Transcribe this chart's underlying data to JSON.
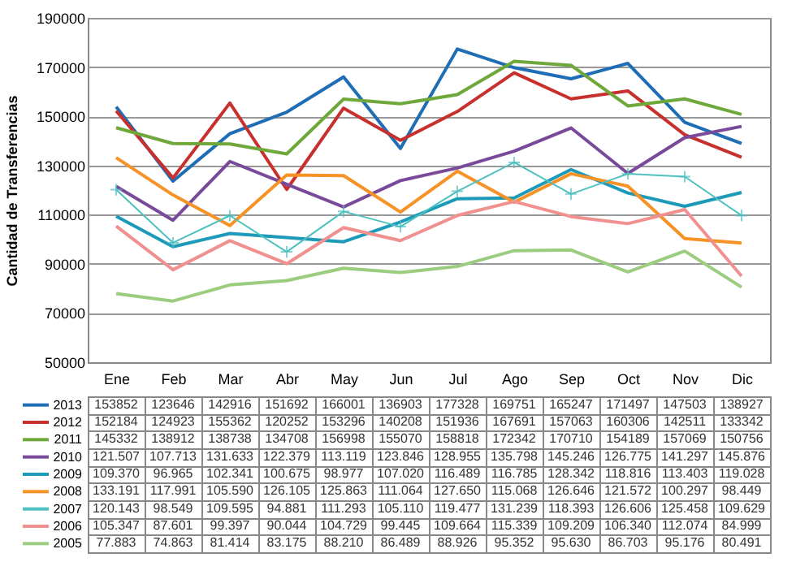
{
  "chart_data": {
    "type": "line",
    "ylabel": "Cantidad de Transferencias",
    "categories": [
      "Ene",
      "Feb",
      "Mar",
      "Abr",
      "May",
      "Jun",
      "Jul",
      "Ago",
      "Sep",
      "Oct",
      "Nov",
      "Dic"
    ],
    "ylim": [
      50000,
      190000
    ],
    "yticks": [
      50000,
      70000,
      90000,
      110000,
      130000,
      150000,
      170000,
      190000
    ],
    "grid": "y",
    "legend": "bottom",
    "marker": "none",
    "line_style": "solid",
    "series": [
      {
        "name": "2013",
        "color": "#1f6db5",
        "values": [
          153852,
          123646,
          142916,
          151692,
          166001,
          136903,
          177328,
          169751,
          165247,
          171497,
          147503,
          138927
        ],
        "value_labels": [
          "153852",
          "123646",
          "142916",
          "151692",
          "166001",
          "136903",
          "177328",
          "169751",
          "165247",
          "171497",
          "147503",
          "138927"
        ]
      },
      {
        "name": "2012",
        "color": "#c8302e",
        "values": [
          152184,
          124923,
          155362,
          120252,
          153296,
          140208,
          151936,
          167691,
          157063,
          160306,
          142511,
          133342
        ],
        "value_labels": [
          "152184",
          "124923",
          "155362",
          "120252",
          "153296",
          "140208",
          "151936",
          "167691",
          "157063",
          "160306",
          "142511",
          "133342"
        ]
      },
      {
        "name": "2011",
        "color": "#6fa83a",
        "values": [
          145332,
          138912,
          138738,
          134708,
          156998,
          155070,
          158818,
          172342,
          170710,
          154189,
          157069,
          150756
        ],
        "value_labels": [
          "145332",
          "138912",
          "138738",
          "134708",
          "156998",
          "155070",
          "158818",
          "172342",
          "170710",
          "154189",
          "157069",
          "150756"
        ]
      },
      {
        "name": "2010",
        "color": "#7a4a9a",
        "values": [
          121507,
          107713,
          131633,
          122379,
          113119,
          123846,
          128955,
          135798,
          145246,
          126775,
          141297,
          145876
        ],
        "value_labels": [
          "121.507",
          "107.713",
          "131.633",
          "122.379",
          "113.119",
          "123.846",
          "128.955",
          "135.798",
          "145.246",
          "126.775",
          "141.297",
          "145.876"
        ]
      },
      {
        "name": "2009",
        "color": "#1c9ab8",
        "values": [
          109370,
          96965,
          102341,
          100675,
          98977,
          107020,
          116489,
          116785,
          128342,
          118816,
          113403,
          119028
        ],
        "value_labels": [
          "109.370",
          "96.965",
          "102.341",
          "100.675",
          "98.977",
          "107.020",
          "116.489",
          "116.785",
          "128.342",
          "118.816",
          "113.403",
          "119.028"
        ]
      },
      {
        "name": "2008",
        "color": "#f79226",
        "values": [
          133191,
          117991,
          105590,
          126105,
          125863,
          111064,
          127650,
          115068,
          126646,
          121572,
          100297,
          98449
        ],
        "value_labels": [
          "133.191",
          "117.991",
          "105.590",
          "126.105",
          "125.863",
          "111.064",
          "127.650",
          "115.068",
          "126.646",
          "121.572",
          "100.297",
          "98.449"
        ]
      },
      {
        "name": "2007",
        "color": "#4dc0c0",
        "marker": "cross",
        "values": [
          120143,
          98549,
          109595,
          94881,
          111293,
          105110,
          119477,
          131239,
          118393,
          126606,
          125458,
          109629
        ],
        "value_labels": [
          "120.143",
          "98.549",
          "109.595",
          "94.881",
          "111.293",
          "105.110",
          "119.477",
          "131.239",
          "118.393",
          "126.606",
          "125.458",
          "109.629"
        ]
      },
      {
        "name": "2006",
        "color": "#f0908f",
        "values": [
          105347,
          87601,
          99397,
          90044,
          104729,
          99445,
          109664,
          115339,
          109209,
          106340,
          112074,
          84999
        ],
        "value_labels": [
          "105.347",
          "87.601",
          "99.397",
          "90.044",
          "104.729",
          "99.445",
          "109.664",
          "115.339",
          "109.209",
          "106.340",
          "112.074",
          "84.999"
        ]
      },
      {
        "name": "2005",
        "color": "#9ccc7e",
        "values": [
          77883,
          74863,
          81414,
          83175,
          88210,
          86489,
          88926,
          95352,
          95630,
          86703,
          95176,
          80491
        ],
        "value_labels": [
          "77.883",
          "74.863",
          "81.414",
          "83.175",
          "88.210",
          "86.489",
          "88.926",
          "95.352",
          "95.630",
          "86.703",
          "95.176",
          "80.491"
        ]
      }
    ]
  }
}
